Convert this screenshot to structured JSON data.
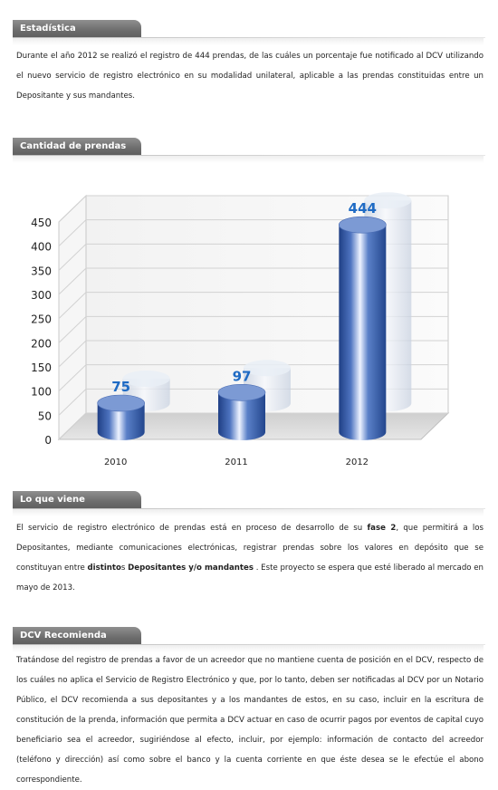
{
  "estadistica": {
    "title": "Estadística",
    "text": "Durante el año 2012 se realizó el registro de 444 prendas, de las cuáles un porcentaje fue notificado al DCV utilizando el nuevo servicio de registro electrónico en su modalidad unilateral, aplicable a las prendas constituidas entre un Depositante y sus mandantes."
  },
  "cantidad": {
    "title": "Cantidad de prendas"
  },
  "chart_data": {
    "type": "bar",
    "categories": [
      "2010",
      "2011",
      "2012"
    ],
    "values": [
      75,
      97,
      444
    ],
    "ylim": [
      0,
      450
    ],
    "yticks": [
      "0",
      "50",
      "100",
      "150",
      "200",
      "250",
      "300",
      "350",
      "400",
      "450"
    ],
    "grid": true,
    "colors": {
      "bar": "#3a5fa8",
      "label": "#1f6bc4"
    }
  },
  "lo_que_viene": {
    "title": "Lo que viene",
    "t1": "El servicio de registro electrónico de prendas está en proceso de desarrollo de su ",
    "b1": "fase 2",
    "t2": ", que permitirá a los Depositantes, mediante comunicaciones electrónicas, registrar prendas sobre los valores en depósito que se constituyan entre ",
    "b2": "distinto",
    "t3": "s ",
    "b3": "Depositantes y/o mandantes",
    "t4": " . Este proyecto se espera que esté liberado al mercado en mayo de 2013."
  },
  "recomienda": {
    "title": "DCV Recomienda",
    "text": "Tratándose del registro de prendas a favor de un acreedor que no mantiene cuenta de posición en el DCV, respecto de los cuáles no aplica el Servicio de Registro Electrónico y que, por lo tanto, deben ser notificadas al DCV por un Notario Público, el DCV recomienda a sus depositantes y a los mandantes de estos, en su caso, incluir en la escritura de constitución de la prenda, información que permita a DCV actuar en caso de ocurrir pagos por eventos de capital cuyo beneficiario sea el acreedor, sugiriéndose al efecto, incluir, por ejemplo: información de contacto del acreedor (teléfono y dirección) así como sobre el banco y la cuenta corriente en que éste desea se le efectúe el abono correspondiente."
  }
}
